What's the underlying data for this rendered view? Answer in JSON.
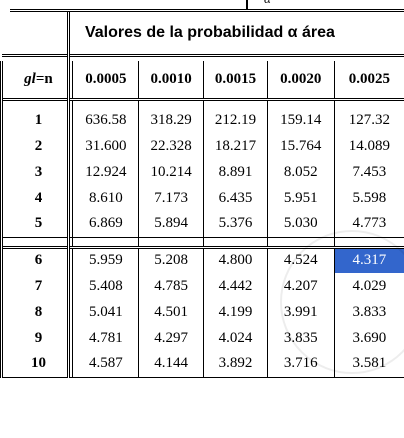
{
  "alpha_symbol": "α",
  "header": {
    "title": "Valores de la probabilidad α área"
  },
  "columns": {
    "gl_prefix": "gl",
    "gl_suffix": "=n",
    "probs": [
      "0.0005",
      "0.0010",
      "0.0015",
      "0.0020",
      "0.0025"
    ]
  },
  "rows": [
    {
      "n": "1",
      "values": [
        "636.58",
        "318.29",
        "212.19",
        "159.14",
        "127.32"
      ]
    },
    {
      "n": "2",
      "values": [
        "31.600",
        "22.328",
        "18.217",
        "15.764",
        "14.089"
      ]
    },
    {
      "n": "3",
      "values": [
        "12.924",
        "10.214",
        "8.891",
        "8.052",
        "7.453"
      ]
    },
    {
      "n": "4",
      "values": [
        "8.610",
        "7.173",
        "6.435",
        "5.951",
        "5.598"
      ]
    },
    {
      "n": "5",
      "values": [
        "6.869",
        "5.894",
        "5.376",
        "5.030",
        "4.773"
      ]
    },
    {
      "n": "6",
      "values": [
        "5.959",
        "5.208",
        "4.800",
        "4.524",
        "4.317"
      ]
    },
    {
      "n": "7",
      "values": [
        "5.408",
        "4.785",
        "4.442",
        "4.207",
        "4.029"
      ]
    },
    {
      "n": "8",
      "values": [
        "5.041",
        "4.501",
        "4.199",
        "3.991",
        "3.833"
      ]
    },
    {
      "n": "9",
      "values": [
        "4.781",
        "4.297",
        "4.024",
        "3.835",
        "3.690"
      ]
    },
    {
      "n": "10",
      "values": [
        "4.587",
        "4.144",
        "3.892",
        "3.716",
        "3.581"
      ]
    }
  ],
  "selection": {
    "row": 5,
    "col": 4,
    "color": "#3366cc"
  }
}
